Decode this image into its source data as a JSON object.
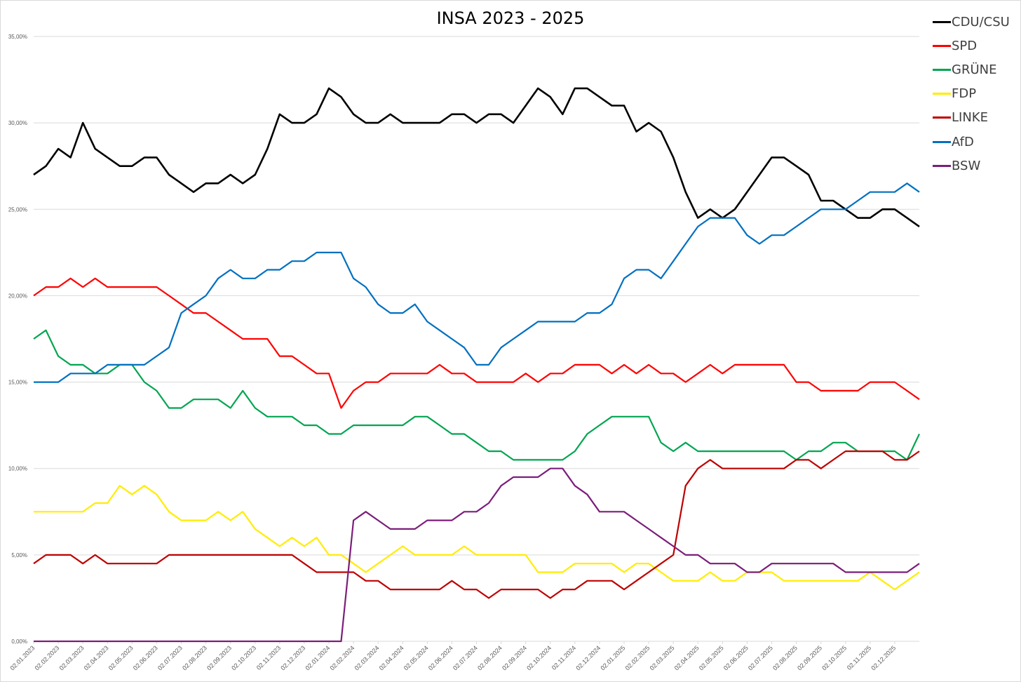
{
  "chart_data": {
    "type": "line",
    "title": "INSA 2023 - 2025",
    "xlabel": "",
    "ylabel": "",
    "ylim": [
      0,
      35
    ],
    "yticks": [
      "0,00%",
      "5,00%",
      "10,00%",
      "15,00%",
      "20,00%",
      "25,00%",
      "30,00%",
      "35,00%"
    ],
    "ytick_values": [
      0,
      5,
      10,
      15,
      20,
      25,
      30,
      35
    ],
    "xticks": [
      "02.01.2023",
      "02.02.2023",
      "02.03.2023",
      "02.04.2023",
      "02.05.2023",
      "02.06.2023",
      "02.07.2023",
      "02.08.2023",
      "02.09.2023",
      "02.10.2023",
      "02.11.2023",
      "02.12.2023",
      "02.01.2024",
      "02.02.2024",
      "02.03.2024",
      "02.04.2024",
      "02.05.2024",
      "02.06.2024",
      "02.07.2024",
      "02.08.2024",
      "02.09.2024",
      "02.10.2024",
      "02.11.2024",
      "02.12.2024",
      "02.01.2025",
      "02.02.2025",
      "02.03.2025",
      "02.04.2025",
      "02.05.2025",
      "02.06.2025",
      "02.07.2025",
      "02.08.2025",
      "02.09.2025",
      "02.10.2025",
      "02.11.2025",
      "02.12.2025"
    ],
    "x_unit": "half-month index from 02.01.2023 (0) to end of 12.2025 (72)",
    "grid": true,
    "legend_position": "right",
    "series": [
      {
        "name": "CDU/CSU",
        "color": "#000000",
        "values": [
          27,
          27.5,
          28.5,
          28,
          30,
          28.5,
          28,
          27.5,
          27.5,
          28,
          28,
          27,
          26.5,
          26,
          26.5,
          26.5,
          27,
          26.5,
          27,
          28.5,
          30.5,
          30,
          30,
          30.5,
          32,
          31.5,
          30.5,
          30,
          30,
          30.5,
          30,
          30,
          30,
          30,
          30.5,
          30.5,
          30,
          30.5,
          30.5,
          30,
          31,
          32,
          31.5,
          30.5,
          32,
          32,
          31.5,
          31,
          31,
          29.5,
          30,
          29.5,
          28,
          26,
          24.5,
          25,
          24.5,
          25,
          26,
          27,
          28,
          28,
          27.5,
          27,
          25.5,
          25.5,
          25,
          24.5,
          24.5,
          25,
          25,
          24.5,
          24
        ]
      },
      {
        "name": "SPD",
        "color": "#ff0000",
        "values": [
          20,
          20.5,
          20.5,
          21,
          20.5,
          21,
          20.5,
          20.5,
          20.5,
          20.5,
          20.5,
          20,
          19.5,
          19,
          19,
          18.5,
          18,
          17.5,
          17.5,
          17.5,
          16.5,
          16.5,
          16,
          15.5,
          15.5,
          13.5,
          14.5,
          15,
          15,
          15.5,
          15.5,
          15.5,
          15.5,
          16,
          15.5,
          15.5,
          15,
          15,
          15,
          15,
          15.5,
          15,
          15.5,
          15.5,
          16,
          16,
          16,
          15.5,
          16,
          15.5,
          16,
          15.5,
          15.5,
          15,
          15.5,
          16,
          15.5,
          16,
          16,
          16,
          16,
          16,
          15,
          15,
          14.5,
          14.5,
          14.5,
          14.5,
          15,
          15,
          15,
          14.5,
          14
        ]
      },
      {
        "name": "GRÜNE",
        "color": "#00a550",
        "values": [
          17.5,
          18,
          16.5,
          16,
          16,
          15.5,
          15.5,
          16,
          16,
          15,
          14.5,
          13.5,
          13.5,
          14,
          14,
          14,
          13.5,
          14.5,
          13.5,
          13,
          13,
          13,
          12.5,
          12.5,
          12,
          12,
          12.5,
          12.5,
          12.5,
          12.5,
          12.5,
          13,
          13,
          12.5,
          12,
          12,
          11.5,
          11,
          11,
          10.5,
          10.5,
          10.5,
          10.5,
          10.5,
          11,
          12,
          12.5,
          13,
          13,
          13,
          13,
          11.5,
          11,
          11.5,
          11,
          11,
          11,
          11,
          11,
          11,
          11,
          11,
          10.5,
          11,
          11,
          11.5,
          11.5,
          11,
          11,
          11,
          11,
          10.5,
          12
        ]
      },
      {
        "name": "FDP",
        "color": "#ffed00",
        "values": [
          7.5,
          7.5,
          7.5,
          7.5,
          7.5,
          8,
          8,
          9,
          8.5,
          9,
          8.5,
          7.5,
          7,
          7,
          7,
          7.5,
          7,
          7.5,
          6.5,
          6,
          5.5,
          6,
          5.5,
          6,
          5,
          5,
          4.5,
          4,
          4.5,
          5,
          5.5,
          5,
          5,
          5,
          5,
          5.5,
          5,
          5,
          5,
          5,
          5,
          4,
          4,
          4,
          4.5,
          4.5,
          4.5,
          4.5,
          4,
          4.5,
          4.5,
          4,
          3.5,
          3.5,
          3.5,
          4,
          3.5,
          3.5,
          4,
          4,
          4,
          3.5,
          3.5,
          3.5,
          3.5,
          3.5,
          3.5,
          3.5,
          4,
          3.5,
          3,
          3.5,
          4
        ]
      },
      {
        "name": "LINKE",
        "color": "#be0000",
        "values": [
          4.5,
          5,
          5,
          5,
          4.5,
          5,
          4.5,
          4.5,
          4.5,
          4.5,
          4.5,
          5,
          5,
          5,
          5,
          5,
          5,
          5,
          5,
          5,
          5,
          5,
          4.5,
          4,
          4,
          4,
          4,
          3.5,
          3.5,
          3,
          3,
          3,
          3,
          3,
          3.5,
          3,
          3,
          2.5,
          3,
          3,
          3,
          3,
          2.5,
          3,
          3,
          3.5,
          3.5,
          3.5,
          3,
          3.5,
          4,
          4.5,
          5,
          9,
          10,
          10.5,
          10,
          10,
          10,
          10,
          10,
          10,
          10.5,
          10.5,
          10,
          10.5,
          11,
          11,
          11,
          11,
          10.5,
          10.5,
          11
        ]
      },
      {
        "name": "AfD",
        "color": "#0070c0",
        "values": [
          15,
          15,
          15,
          15.5,
          15.5,
          15.5,
          16,
          16,
          16,
          16,
          16.5,
          17,
          19,
          19.5,
          20,
          21,
          21.5,
          21,
          21,
          21.5,
          21.5,
          22,
          22,
          22.5,
          22.5,
          22.5,
          21,
          20.5,
          19.5,
          19,
          19,
          19.5,
          18.5,
          18,
          17.5,
          17,
          16,
          16,
          17,
          17.5,
          18,
          18.5,
          18.5,
          18.5,
          18.5,
          19,
          19,
          19.5,
          21,
          21.5,
          21.5,
          21,
          22,
          23,
          24,
          24.5,
          24.5,
          24.5,
          23.5,
          23,
          23.5,
          23.5,
          24,
          24.5,
          25,
          25,
          25,
          25.5,
          26,
          26,
          26,
          26.5,
          26
        ]
      },
      {
        "name": "BSW",
        "color": "#7b1e7a",
        "values": [
          0,
          0,
          0,
          0,
          0,
          0,
          0,
          0,
          0,
          0,
          0,
          0,
          0,
          0,
          0,
          0,
          0,
          0,
          0,
          0,
          0,
          0,
          0,
          0,
          0,
          0,
          7,
          7.5,
          7,
          6.5,
          6.5,
          6.5,
          7,
          7,
          7,
          7.5,
          7.5,
          8,
          9,
          9.5,
          9.5,
          9.5,
          10,
          10,
          9,
          8.5,
          7.5,
          7.5,
          7.5,
          7,
          6.5,
          6,
          5.5,
          5,
          5,
          4.5,
          4.5,
          4.5,
          4,
          4,
          4.5,
          4.5,
          4.5,
          4.5,
          4.5,
          4.5,
          4,
          4,
          4,
          4,
          4,
          4,
          4.5
        ]
      }
    ]
  }
}
